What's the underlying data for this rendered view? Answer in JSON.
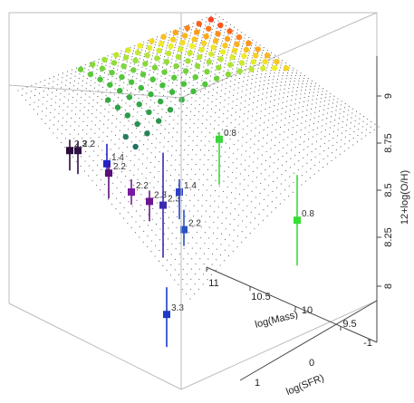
{
  "chart_data": {
    "type": "scatter",
    "dimensions": "3d",
    "title": "",
    "axes": {
      "x": {
        "label": "log(Mass)",
        "ticks": [
          "11",
          "10.5",
          "10",
          "9.5"
        ]
      },
      "y": {
        "label": "log(SFR)",
        "ticks": [
          "1",
          "0",
          "-1"
        ]
      },
      "z": {
        "label": "12+log(O/H)",
        "ticks": [
          "8",
          "8.25",
          "8.5",
          "8.75",
          "9"
        ]
      }
    },
    "surface": {
      "style": "dotted mesh",
      "colormap": [
        "#1f5f6f",
        "#2a9a4a",
        "#46c23a",
        "#9be03a",
        "#f2ef2a",
        "#ff9a1a",
        "#ff2a1a"
      ]
    },
    "points": [
      {
        "label": "2.3",
        "z": 8.72,
        "color": "#2a0d3a"
      },
      {
        "label": "2.2",
        "z": 8.72,
        "color": "#2f0f45"
      },
      {
        "label": "1.4",
        "z": 8.65,
        "color": "#2424c8"
      },
      {
        "label": "2.2",
        "z": 8.6,
        "color": "#5a0f7a"
      },
      {
        "label": "2.2",
        "z": 8.5,
        "color": "#7a1aa0"
      },
      {
        "label": "2.3",
        "z": 8.45,
        "color": "#6a1890"
      },
      {
        "label": "2.3",
        "z": 8.43,
        "color": "#3d2ab0"
      },
      {
        "label": "1.4",
        "z": 8.5,
        "color": "#2a40c8"
      },
      {
        "label": "2.2",
        "z": 8.3,
        "color": "#2a52c0"
      },
      {
        "label": "3.3",
        "z": 7.85,
        "color": "#1e3ac8"
      },
      {
        "label": "0.8",
        "z": 8.78,
        "color": "#3cd63c"
      },
      {
        "label": "0.8",
        "z": 8.35,
        "color": "#34e034"
      }
    ]
  }
}
